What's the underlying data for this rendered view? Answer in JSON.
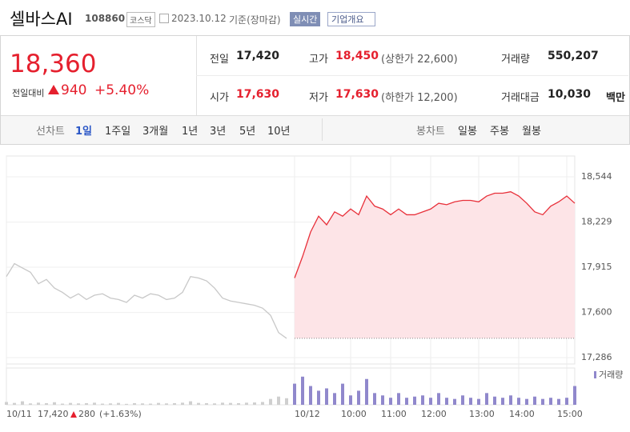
{
  "header": {
    "name": "셀바스AI",
    "code": "108860",
    "market": "코스닥",
    "date": "2023.10.12",
    "basis": "기준(장마감)",
    "realtime": "실시간",
    "overview": "기업개요"
  },
  "summary": {
    "price": "18,360",
    "change_label": "전일대비",
    "change": "940",
    "change_pct": "+5.40%",
    "cells": [
      [
        "전일",
        "17,420"
      ],
      [
        "고가",
        "18,450",
        "(상한가 22,600)"
      ],
      [
        "거래량",
        "550,207"
      ],
      [
        "시가",
        "17,630"
      ],
      [
        "저가",
        "17,630",
        "(하한가 12,200)"
      ],
      [
        "거래대금",
        "10,030",
        "백만"
      ]
    ]
  },
  "tabs": {
    "line_label": "선차트",
    "line": [
      "1일",
      "1주일",
      "3개월",
      "1년",
      "3년",
      "5년",
      "10년"
    ],
    "candle_label": "봉차트",
    "candle": [
      "일봉",
      "주봉",
      "월봉"
    ]
  },
  "footer": {
    "price": "17,420",
    "change": "280",
    "pct": "(+1.63%)"
  },
  "chart_data": {
    "type": "line",
    "ylim": [
      17286,
      18544
    ],
    "yticks": [
      {
        "value": 17286,
        "label": "17,286"
      },
      {
        "value": 17600,
        "label": "17,600"
      },
      {
        "value": 17915,
        "label": "17,915"
      },
      {
        "value": 18229,
        "label": "18,229"
      },
      {
        "value": 18544,
        "label": "18,544"
      }
    ],
    "xlim": [
      0,
      71
    ],
    "xticks": [
      {
        "value": 0,
        "label": "10/11"
      },
      {
        "value": 36,
        "label": "10/12"
      },
      {
        "value": 43,
        "label": "10:00"
      },
      {
        "value": 48,
        "label": "11:00"
      },
      {
        "value": 53,
        "label": "12:00"
      },
      {
        "value": 59,
        "label": "13:00"
      },
      {
        "value": 64,
        "label": "14:00"
      },
      {
        "value": 70,
        "label": "15:00"
      }
    ],
    "baseline": 17420,
    "series": [
      {
        "color": "#c8c8c8",
        "values": [
          17850,
          17940,
          17910,
          17880,
          17800,
          17830,
          17770,
          17740,
          17700,
          17730,
          17690,
          17720,
          17730,
          17700,
          17690,
          17670,
          17720,
          17700,
          17730,
          17720,
          17690,
          17700,
          17740,
          17850,
          17840,
          17820,
          17770,
          17700,
          17680,
          17670,
          17660,
          17650,
          17630,
          17580,
          17460,
          17420,
          null,
          null,
          null,
          null,
          null,
          null,
          null,
          null,
          null,
          null,
          null,
          null,
          null,
          null,
          null,
          null,
          null,
          null,
          null,
          null,
          null,
          null,
          null,
          null,
          null,
          null,
          null,
          null,
          null,
          null,
          null,
          null,
          null,
          null,
          null,
          null
        ]
      },
      {
        "color": "#e8303a",
        "fill": "#fde4e7",
        "values": [
          null,
          null,
          null,
          null,
          null,
          null,
          null,
          null,
          null,
          null,
          null,
          null,
          null,
          null,
          null,
          null,
          null,
          null,
          null,
          null,
          null,
          null,
          null,
          null,
          null,
          null,
          null,
          null,
          null,
          null,
          null,
          null,
          null,
          null,
          null,
          null,
          17840,
          17990,
          18160,
          18270,
          18210,
          18300,
          18270,
          18320,
          18280,
          18410,
          18340,
          18320,
          18280,
          18320,
          18280,
          18280,
          18300,
          18320,
          18360,
          18350,
          18370,
          18380,
          18380,
          18370,
          18410,
          18430,
          18430,
          18440,
          18410,
          18360,
          18300,
          18280,
          18340,
          18370,
          18410,
          18360
        ]
      }
    ],
    "volume": {
      "name": "거래량",
      "ylim": [
        0,
        15000
      ],
      "series": [
        {
          "color": "#cfcfcf",
          "values": [
            1200,
            800,
            1500,
            600,
            900,
            700,
            1100,
            500,
            800,
            600,
            700,
            900,
            500,
            600,
            800,
            400,
            700,
            600,
            500,
            800,
            600,
            700,
            900,
            1500,
            800,
            700,
            600,
            900,
            800,
            700,
            900,
            1000,
            1200,
            2500,
            3500,
            2800,
            null,
            null,
            null,
            null,
            null,
            null,
            null,
            null,
            null,
            null,
            null,
            null,
            null,
            null,
            null,
            null,
            null,
            null,
            null,
            null,
            null,
            null,
            null,
            null,
            null,
            null,
            null,
            null,
            null,
            null,
            null,
            null,
            null,
            null,
            null,
            null
          ]
        },
        {
          "color": "#9088cc",
          "values": [
            null,
            null,
            null,
            null,
            null,
            null,
            null,
            null,
            null,
            null,
            null,
            null,
            null,
            null,
            null,
            null,
            null,
            null,
            null,
            null,
            null,
            null,
            null,
            null,
            null,
            null,
            null,
            null,
            null,
            null,
            null,
            null,
            null,
            null,
            null,
            null,
            9000,
            12000,
            8000,
            6000,
            7000,
            5000,
            9000,
            4000,
            6000,
            11000,
            5000,
            4000,
            3000,
            5000,
            3000,
            3500,
            4000,
            3000,
            5000,
            3000,
            2500,
            4000,
            3000,
            2500,
            5000,
            3500,
            3000,
            4000,
            3000,
            2500,
            3500,
            2500,
            3000,
            2500,
            3000,
            8000
          ]
        }
      ]
    }
  }
}
